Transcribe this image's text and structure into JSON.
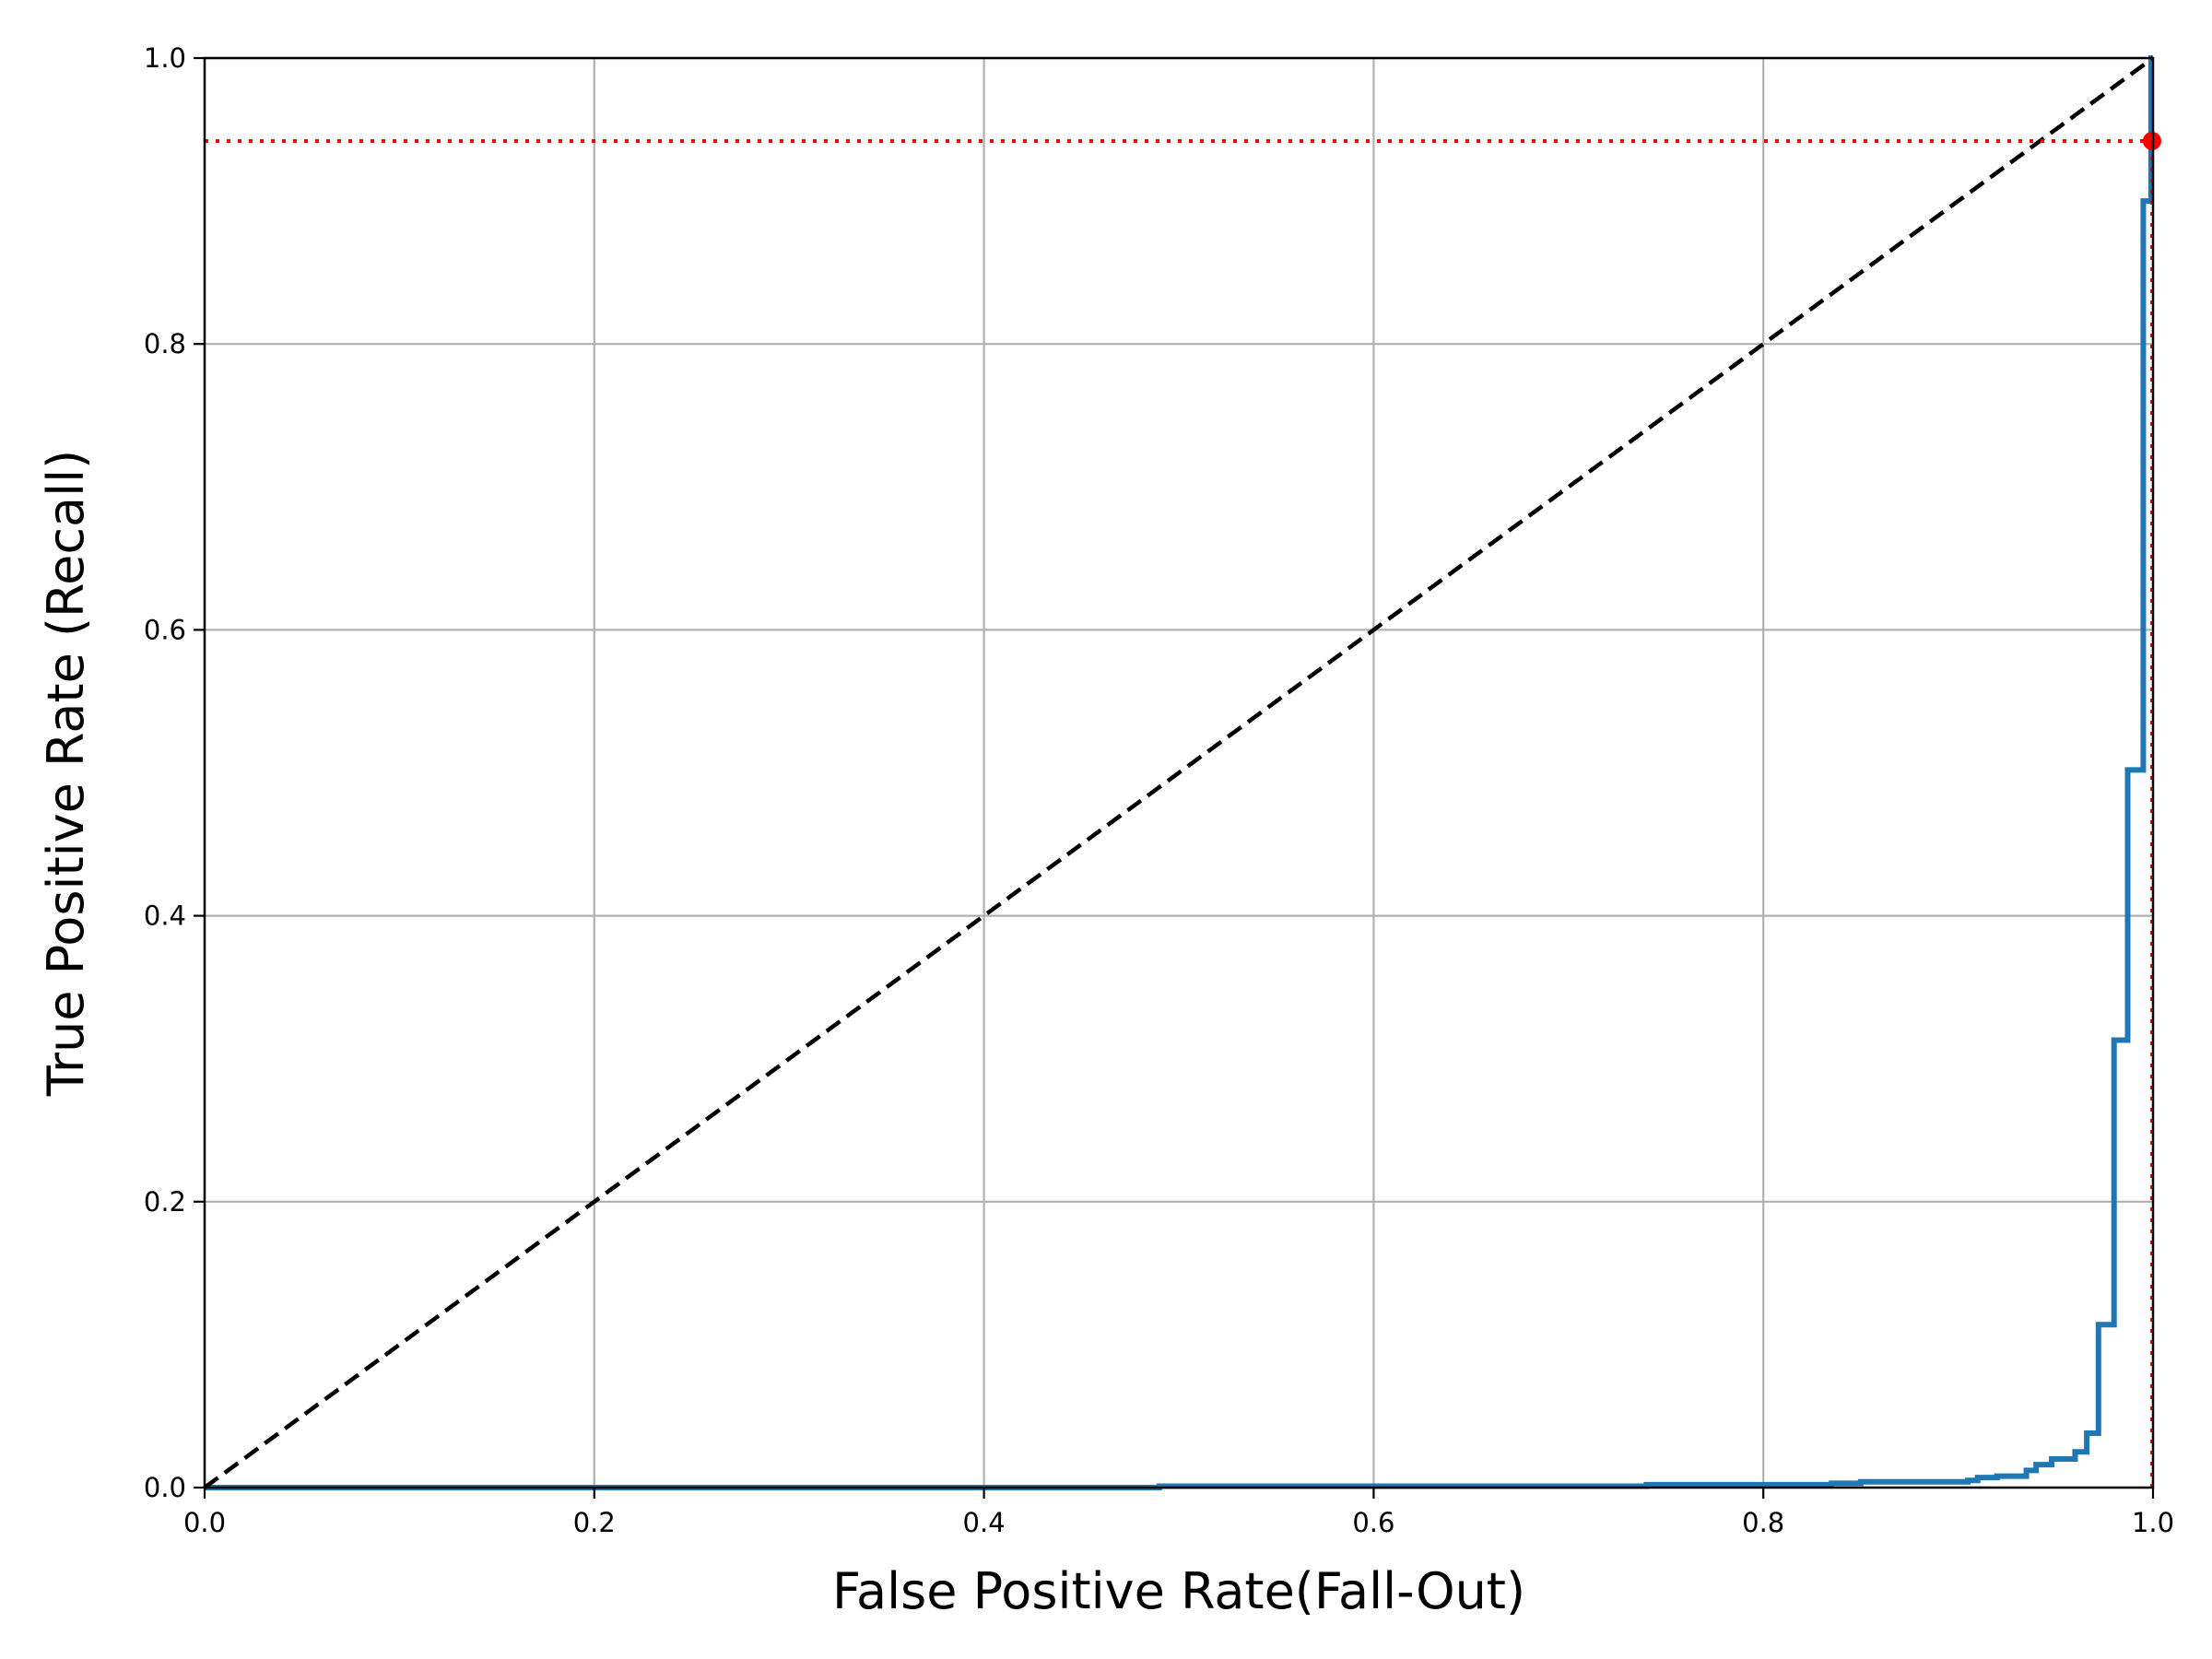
{
  "chart_data": {
    "type": "line",
    "title": "",
    "xlabel": "False Positive Rate(Fall-Out)",
    "ylabel": "True Positive Rate (Recall)",
    "xlim": [
      0.0,
      1.0
    ],
    "ylim": [
      0.0,
      1.0
    ],
    "grid": true,
    "legend": "none",
    "x_ticks": [
      "0.0",
      "0.2",
      "0.4",
      "0.6",
      "0.8",
      "1.0"
    ],
    "y_ticks": [
      "0.0",
      "0.2",
      "0.4",
      "0.6",
      "0.8",
      "1.0"
    ],
    "series": [
      {
        "role": "roc-curve",
        "color": "#1f77b4",
        "style": "solid",
        "x": [
          0.0,
          0.49,
          0.49,
          0.74,
          0.74,
          0.835,
          0.835,
          0.85,
          0.85,
          0.905,
          0.905,
          0.91,
          0.91,
          0.92,
          0.92,
          0.935,
          0.935,
          0.94,
          0.94,
          0.948,
          0.948,
          0.96,
          0.96,
          0.966,
          0.966,
          0.972,
          0.972,
          0.98,
          0.98,
          0.987,
          0.987,
          0.995,
          0.995,
          0.999,
          0.999,
          1.0
        ],
        "y": [
          0.0,
          0.0,
          0.001,
          0.001,
          0.002,
          0.002,
          0.003,
          0.003,
          0.004,
          0.004,
          0.005,
          0.005,
          0.007,
          0.007,
          0.008,
          0.008,
          0.012,
          0.012,
          0.016,
          0.016,
          0.02,
          0.02,
          0.025,
          0.025,
          0.038,
          0.038,
          0.114,
          0.114,
          0.313,
          0.313,
          0.502,
          0.502,
          0.9,
          0.9,
          1.0,
          1.0
        ]
      },
      {
        "role": "random-classifier-diagonal",
        "color": "#000000",
        "style": "dashed",
        "x": [
          0.0,
          1.0
        ],
        "y": [
          0.0,
          1.0
        ]
      },
      {
        "role": "recall-horizontal-reference",
        "color": "#ff0000",
        "style": "dotted",
        "x": [
          0.0,
          0.9995
        ],
        "y": [
          0.942,
          0.942
        ]
      },
      {
        "role": "fpr-vertical-reference",
        "color": "#ff0000",
        "style": "dotted",
        "x": [
          0.9995,
          0.9995
        ],
        "y": [
          0.0,
          0.942
        ]
      }
    ],
    "point": {
      "color": "#ff0000",
      "x": 0.9995,
      "y": 0.942
    }
  }
}
